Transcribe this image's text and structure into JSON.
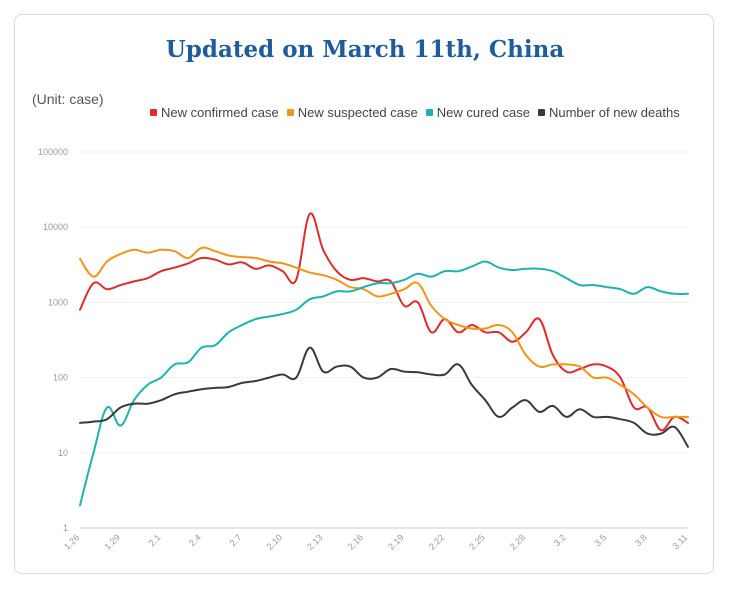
{
  "page": {
    "title": "Updated on March 11th, China",
    "unit_label": "(Unit: case)"
  },
  "chart_data": {
    "type": "line",
    "title": "Updated on March 11th, China",
    "yscale": "log",
    "ylim": [
      1,
      100000
    ],
    "y_ticks": [
      "1",
      "10",
      "100",
      "1000",
      "10000",
      "100000"
    ],
    "x_tick_labels": [
      "1.26",
      "1.29",
      "2.1",
      "2.4",
      "2.7",
      "2.10",
      "2.13",
      "2.16",
      "2.19",
      "2.22",
      "2.25",
      "2.28",
      "3.2",
      "3.5",
      "3.8",
      "3.11"
    ],
    "x": [
      "1.26",
      "1.27",
      "1.28",
      "1.29",
      "1.30",
      "1.31",
      "2.1",
      "2.2",
      "2.3",
      "2.4",
      "2.5",
      "2.6",
      "2.7",
      "2.8",
      "2.9",
      "2.10",
      "2.11",
      "2.12",
      "2.13",
      "2.14",
      "2.15",
      "2.16",
      "2.17",
      "2.18",
      "2.19",
      "2.20",
      "2.21",
      "2.22",
      "2.23",
      "2.24",
      "2.25",
      "2.26",
      "2.27",
      "2.28",
      "2.29",
      "3.1",
      "3.2",
      "3.3",
      "3.4",
      "3.5",
      "3.6",
      "3.7",
      "3.8",
      "3.9",
      "3.10",
      "3.11"
    ],
    "grid": true,
    "legend_position": "top-right",
    "series": [
      {
        "name": "New confirmed case",
        "color": "#e02b2b",
        "values": [
          800,
          1800,
          1500,
          1700,
          1900,
          2100,
          2600,
          2900,
          3300,
          3900,
          3700,
          3200,
          3400,
          2800,
          3100,
          2600,
          2000,
          15000,
          5000,
          2600,
          2000,
          2100,
          1900,
          1900,
          900,
          1000,
          400,
          600,
          400,
          500,
          400,
          400,
          300,
          400,
          600,
          200,
          120,
          130,
          150,
          140,
          100,
          40,
          40,
          20,
          30,
          25
        ]
      },
      {
        "name": "New suspected case",
        "color": "#f29516",
        "values": [
          3800,
          2200,
          3500,
          4400,
          5000,
          4600,
          5000,
          4800,
          3900,
          5300,
          4800,
          4200,
          4000,
          3900,
          3500,
          3300,
          2900,
          2500,
          2300,
          2000,
          1600,
          1500,
          1200,
          1300,
          1500,
          1800,
          900,
          600,
          500,
          450,
          450,
          500,
          400,
          200,
          140,
          150,
          150,
          140,
          100,
          100,
          80,
          60,
          40,
          30,
          30,
          30
        ]
      },
      {
        "name": "New cured case",
        "color": "#1cb3b0",
        "values": [
          2,
          10,
          40,
          23,
          50,
          80,
          100,
          150,
          160,
          250,
          270,
          400,
          500,
          600,
          650,
          700,
          800,
          1100,
          1200,
          1400,
          1400,
          1600,
          1800,
          1800,
          2000,
          2400,
          2200,
          2600,
          2600,
          3000,
          3500,
          2900,
          2700,
          2800,
          2800,
          2600,
          2100,
          1700,
          1700,
          1600,
          1500,
          1300,
          1600,
          1400,
          1300,
          1300
        ]
      },
      {
        "name": "Number of new deaths",
        "color": "#3a3a3a",
        "values": [
          25,
          26,
          28,
          40,
          45,
          45,
          50,
          60,
          65,
          70,
          73,
          75,
          85,
          90,
          100,
          110,
          100,
          250,
          120,
          140,
          140,
          100,
          100,
          130,
          120,
          118,
          110,
          110,
          150,
          80,
          50,
          30,
          40,
          50,
          35,
          42,
          30,
          38,
          30,
          30,
          28,
          25,
          18,
          18,
          22,
          12
        ]
      }
    ]
  }
}
